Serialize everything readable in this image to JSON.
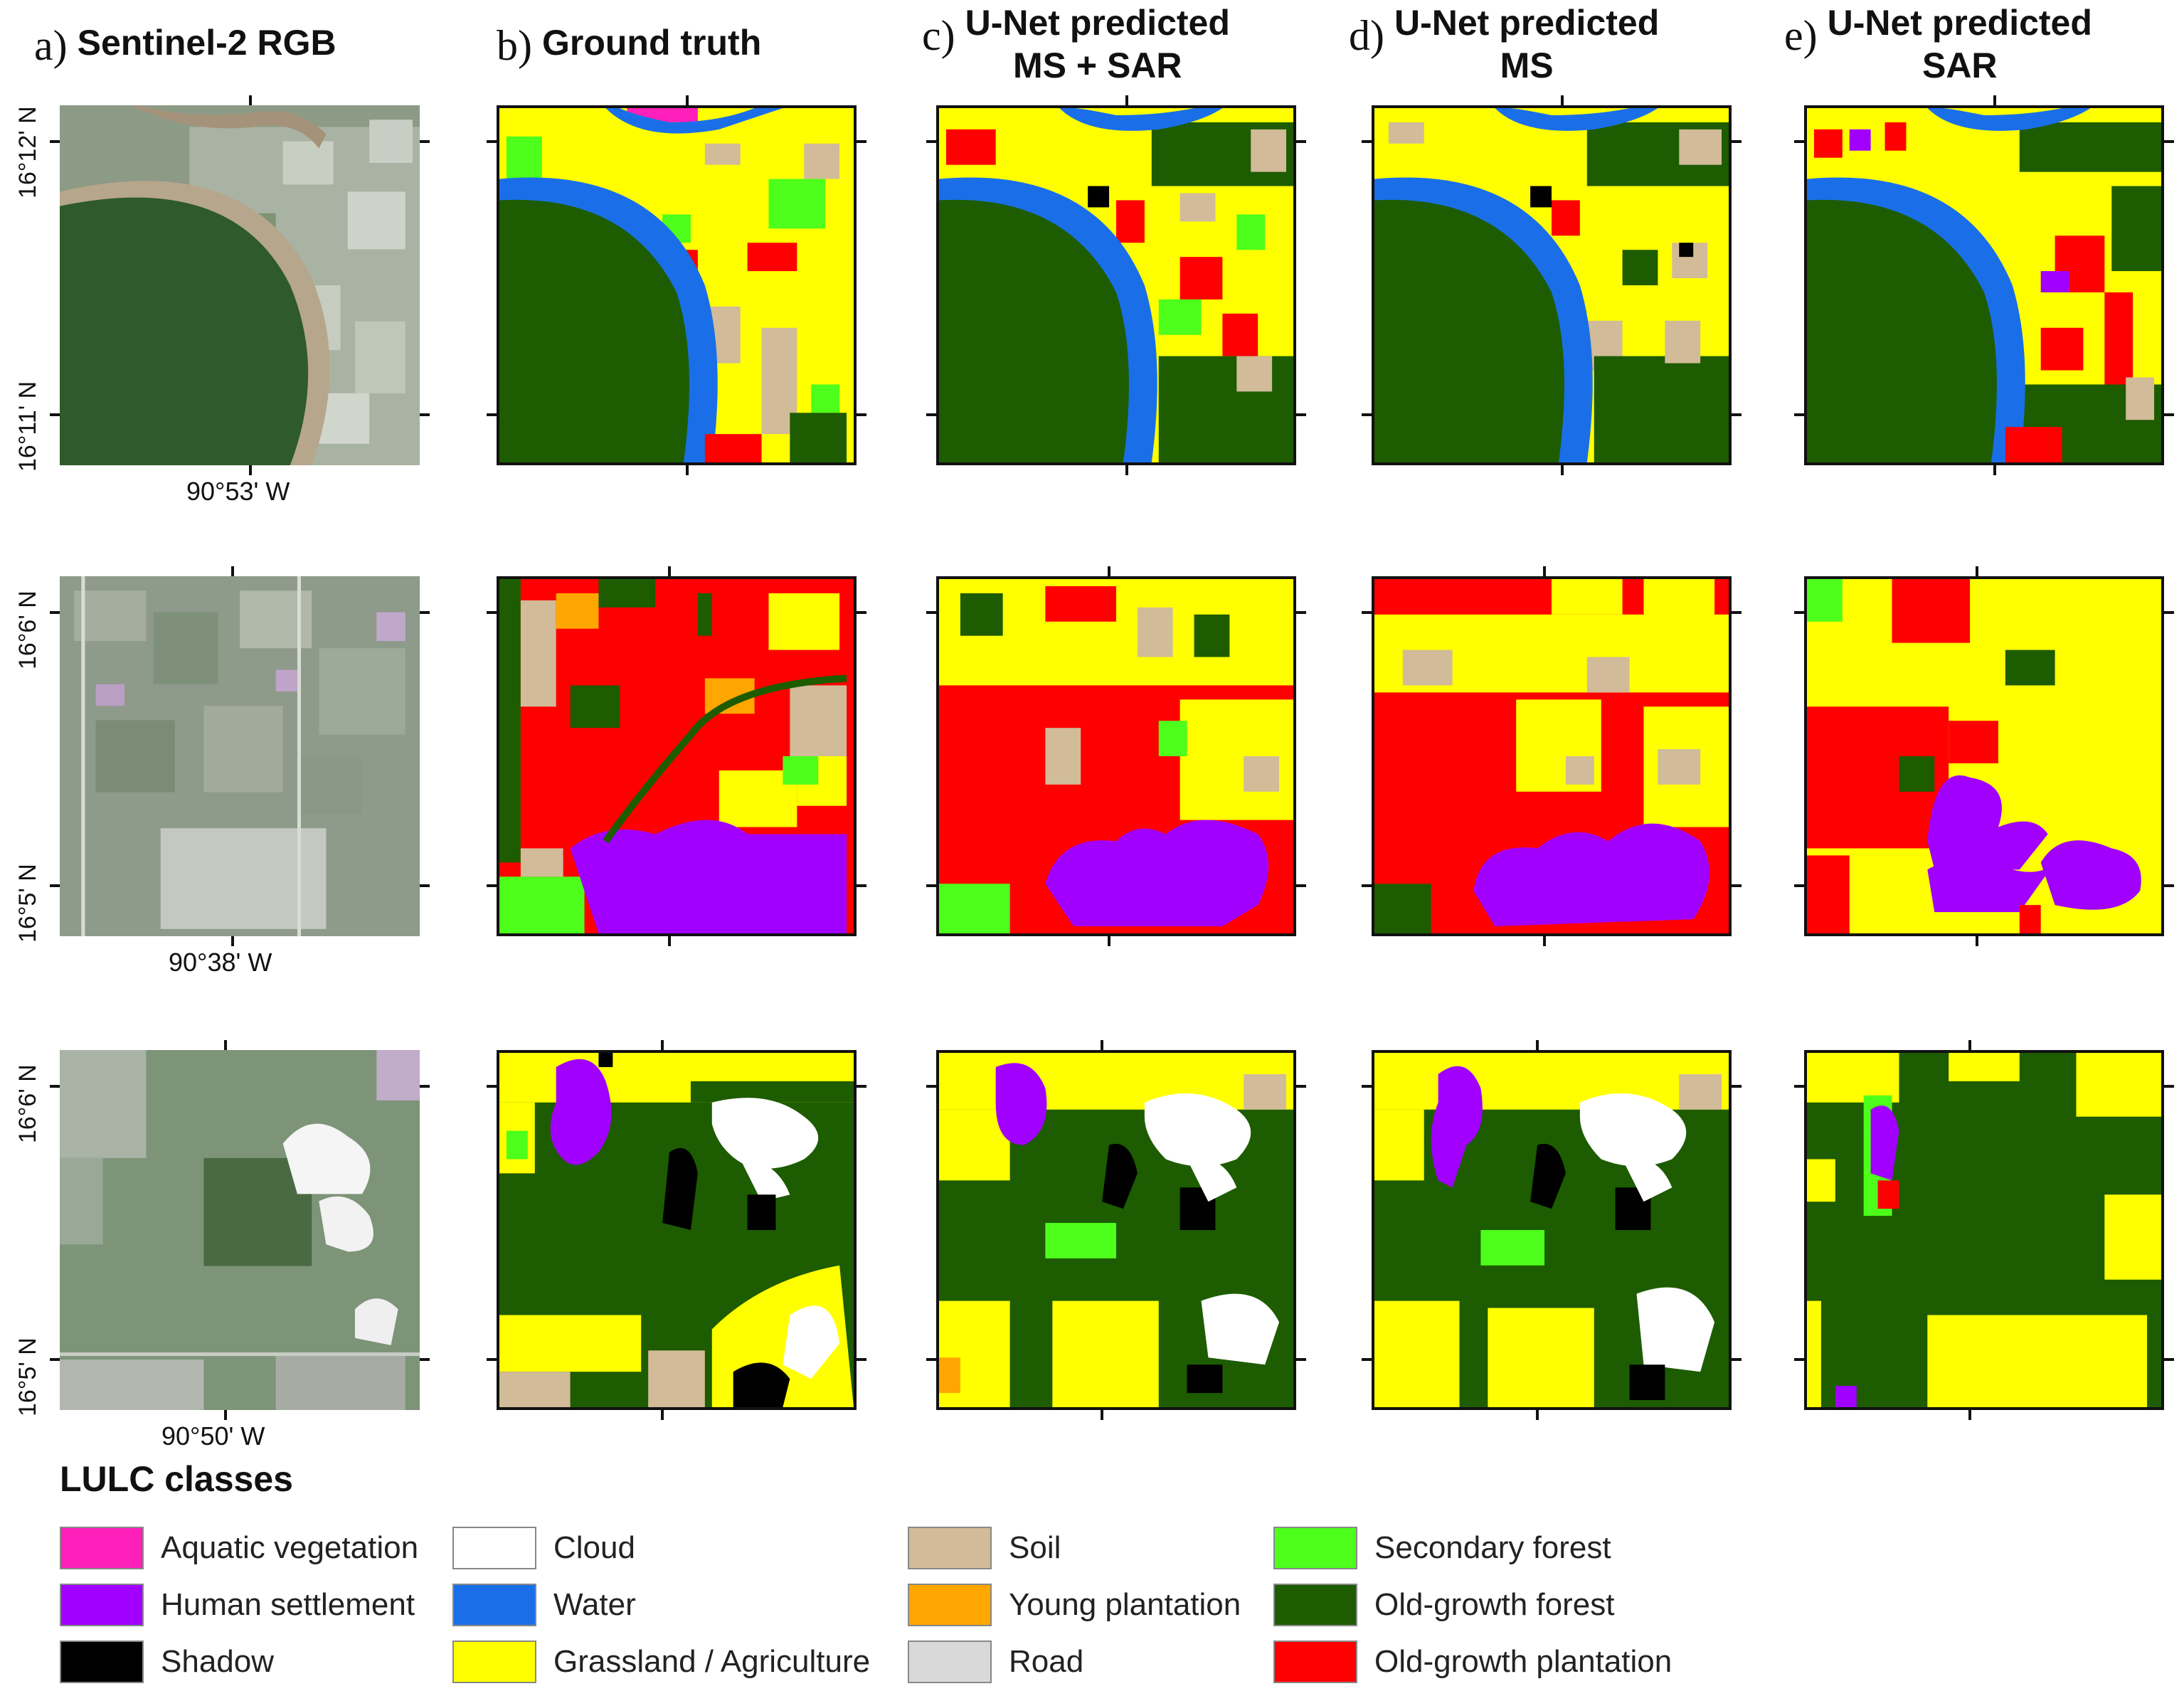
{
  "columns": [
    {
      "letter": "a)",
      "title_lines": [
        "Sentinel-2 RGB"
      ]
    },
    {
      "letter": "b)",
      "title_lines": [
        "Ground truth"
      ]
    },
    {
      "letter": "c)",
      "title_lines": [
        "U-Net predicted",
        "MS + SAR"
      ]
    },
    {
      "letter": "d)",
      "title_lines": [
        "U-Net predicted",
        "MS"
      ]
    },
    {
      "letter": "e)",
      "title_lines": [
        "U-Net predicted",
        "SAR"
      ]
    }
  ],
  "rows": [
    {
      "lat_labels": [
        "16°12' N",
        "16°11' N"
      ],
      "lon_label": "90°53' W"
    },
    {
      "lat_labels": [
        "16°6' N",
        "16°5' N"
      ],
      "lon_label": "90°38' W"
    },
    {
      "lat_labels": [
        "16°6' N",
        "16°5' N"
      ],
      "lon_label": "90°50' W"
    }
  ],
  "legend": {
    "title": "LULC classes",
    "items": [
      {
        "label": "Aquatic vegetation",
        "color": "#ff1fba"
      },
      {
        "label": "Human settlement",
        "color": "#a100ff"
      },
      {
        "label": "Shadow",
        "color": "#000000"
      },
      {
        "label": "Cloud",
        "color": "#ffffff"
      },
      {
        "label": "Water",
        "color": "#1a6fe8"
      },
      {
        "label": "Grassland / Agriculture",
        "color": "#ffff00"
      },
      {
        "label": "Soil",
        "color": "#d2bb98"
      },
      {
        "label": "Young plantation",
        "color": "#ffa600"
      },
      {
        "label": "Road",
        "color": "#d9d9d9"
      },
      {
        "label": "Secondary forest",
        "color": "#4dff1a"
      },
      {
        "label": "Old-growth forest",
        "color": "#1d5c00"
      },
      {
        "label": "Old-growth plantation",
        "color": "#ff0000"
      }
    ]
  }
}
